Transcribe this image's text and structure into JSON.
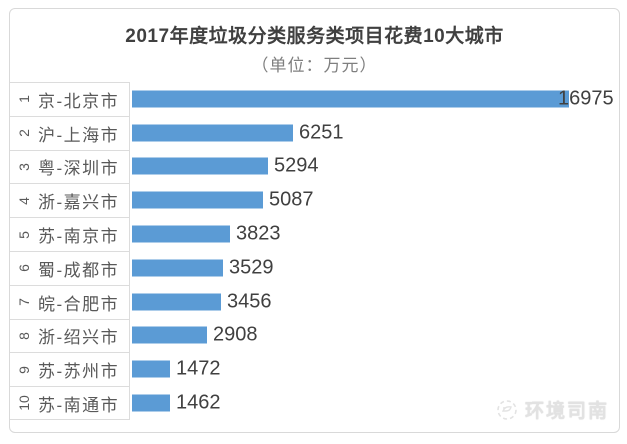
{
  "title": "2017年度垃圾分类服务类项目花费10大城市",
  "subtitle": "（单位：万元）",
  "watermark": {
    "text": "环境司南",
    "icon": "compass-logo-icon"
  },
  "colors": {
    "bar": "#5B9BD5",
    "frame_border": "#D9D9D9",
    "cell_border": "#DCDCDC",
    "title_text": "#404040",
    "category_text": "#595959",
    "value_text": "#404040",
    "subtitle_text": "#7F7F7F",
    "watermark_text": "#E2E2E2"
  },
  "chart_data": {
    "type": "bar",
    "orientation": "horizontal",
    "title": "2017年度垃圾分类服务类项目花费10大城市",
    "unit_label": "（单位：万元）",
    "ranks": [
      "1",
      "2",
      "3",
      "4",
      "5",
      "6",
      "7",
      "8",
      "9",
      "10"
    ],
    "categories": [
      "京-北京市",
      "沪-上海市",
      "粤-深圳市",
      "浙-嘉兴市",
      "苏-南京市",
      "蜀-成都市",
      "皖-合肥市",
      "浙-绍兴市",
      "苏-苏州市",
      "苏-南通市"
    ],
    "values": [
      16975,
      6251,
      5294,
      5087,
      3823,
      3529,
      3456,
      2908,
      1472,
      1462
    ],
    "value_labels_shown": true,
    "xlim": [
      0,
      17600
    ],
    "grid": false,
    "legend": false,
    "category_axis_borders": true
  }
}
